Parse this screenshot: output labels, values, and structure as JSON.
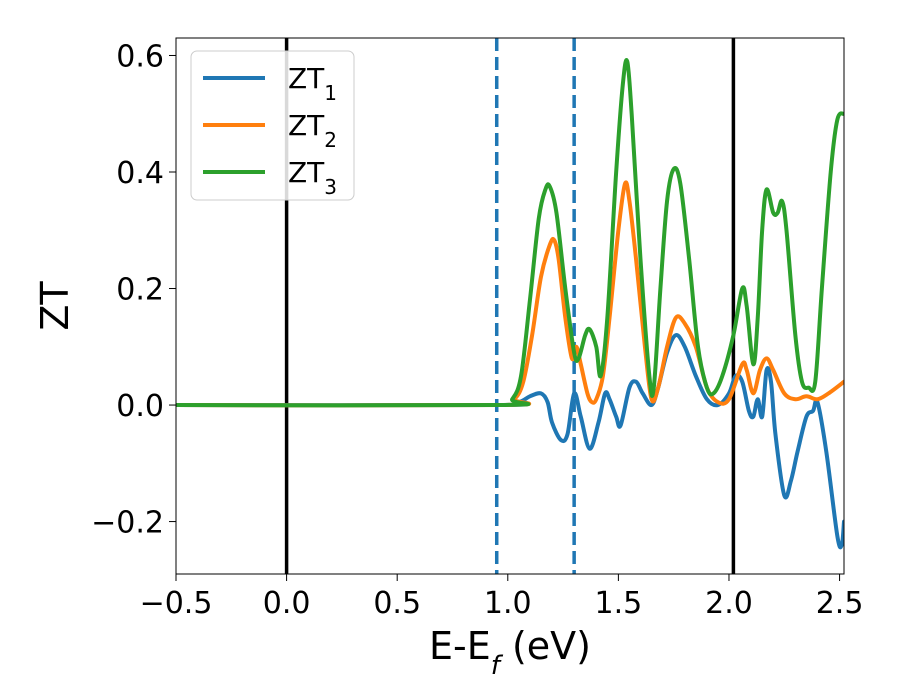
{
  "chart_data": {
    "type": "line",
    "title": "",
    "xlabel": {
      "main": "E-E",
      "sub": "f",
      "suffix": " (eV)"
    },
    "ylabel": "ZT",
    "xlim": [
      -0.5,
      2.52
    ],
    "ylim": [
      -0.29,
      0.63
    ],
    "xticks": [
      -0.5,
      0.0,
      0.5,
      1.0,
      1.5,
      2.0,
      2.5
    ],
    "xtick_labels": [
      "−0.5",
      "0.0",
      "0.5",
      "1.0",
      "1.5",
      "2.0",
      "2.5"
    ],
    "yticks": [
      -0.2,
      0.0,
      0.2,
      0.4,
      0.6
    ],
    "ytick_labels": [
      "−0.2",
      "0.0",
      "0.2",
      "0.4",
      "0.6"
    ],
    "grid": false,
    "legend_position": "top-left",
    "vlines": [
      {
        "x": 0.0,
        "style": "solid",
        "color": "#000000"
      },
      {
        "x": 2.02,
        "style": "solid",
        "color": "#000000"
      },
      {
        "x": 0.95,
        "style": "dashed",
        "color": "#1f77b4"
      },
      {
        "x": 1.3,
        "style": "dashed",
        "color": "#1f77b4"
      }
    ],
    "series": [
      {
        "name": "ZT",
        "sub": "1",
        "color": "#1f77b4",
        "points": [
          [
            -0.5,
            0
          ],
          [
            0.95,
            0
          ],
          [
            1.05,
            0.005
          ],
          [
            1.1,
            0.015
          ],
          [
            1.15,
            0.02
          ],
          [
            1.18,
            0.005
          ],
          [
            1.2,
            -0.03
          ],
          [
            1.24,
            -0.06
          ],
          [
            1.27,
            -0.05
          ],
          [
            1.3,
            0.02
          ],
          [
            1.33,
            -0.02
          ],
          [
            1.37,
            -0.075
          ],
          [
            1.41,
            -0.03
          ],
          [
            1.44,
            0.02
          ],
          [
            1.46,
            0.01
          ],
          [
            1.49,
            -0.02
          ],
          [
            1.51,
            -0.035
          ],
          [
            1.55,
            0.03
          ],
          [
            1.58,
            0.04
          ],
          [
            1.61,
            0.02
          ],
          [
            1.65,
            0.0
          ],
          [
            1.68,
            0.03
          ],
          [
            1.72,
            0.09
          ],
          [
            1.76,
            0.12
          ],
          [
            1.8,
            0.1
          ],
          [
            1.85,
            0.05
          ],
          [
            1.9,
            0.01
          ],
          [
            1.95,
            0.0
          ],
          [
            2.0,
            0.02
          ],
          [
            2.03,
            0.05
          ],
          [
            2.06,
            0.04
          ],
          [
            2.09,
            -0.01
          ],
          [
            2.11,
            -0.02
          ],
          [
            2.13,
            0.01
          ],
          [
            2.15,
            -0.02
          ],
          [
            2.17,
            0.06
          ],
          [
            2.19,
            0.04
          ],
          [
            2.21,
            -0.05
          ],
          [
            2.25,
            -0.155
          ],
          [
            2.28,
            -0.13
          ],
          [
            2.31,
            -0.08
          ],
          [
            2.35,
            -0.02
          ],
          [
            2.38,
            -0.01
          ],
          [
            2.4,
            0.005
          ],
          [
            2.44,
            -0.08
          ],
          [
            2.49,
            -0.225
          ],
          [
            2.51,
            -0.24
          ],
          [
            2.52,
            -0.2
          ]
        ]
      },
      {
        "name": "ZT",
        "sub": "2",
        "color": "#ff7f0e",
        "points": [
          [
            -0.5,
            0
          ],
          [
            0.97,
            0
          ],
          [
            1.03,
            0.01
          ],
          [
            1.07,
            0.04
          ],
          [
            1.11,
            0.12
          ],
          [
            1.15,
            0.22
          ],
          [
            1.19,
            0.275
          ],
          [
            1.21,
            0.283
          ],
          [
            1.23,
            0.25
          ],
          [
            1.26,
            0.15
          ],
          [
            1.29,
            0.08
          ],
          [
            1.31,
            0.1
          ],
          [
            1.33,
            0.07
          ],
          [
            1.36,
            0.02
          ],
          [
            1.38,
            0.005
          ],
          [
            1.4,
            0.01
          ],
          [
            1.43,
            0.05
          ],
          [
            1.46,
            0.15
          ],
          [
            1.5,
            0.3
          ],
          [
            1.53,
            0.38
          ],
          [
            1.55,
            0.35
          ],
          [
            1.58,
            0.25
          ],
          [
            1.62,
            0.1
          ],
          [
            1.65,
            0.01
          ],
          [
            1.68,
            0.03
          ],
          [
            1.72,
            0.1
          ],
          [
            1.76,
            0.15
          ],
          [
            1.8,
            0.14
          ],
          [
            1.85,
            0.1
          ],
          [
            1.9,
            0.03
          ],
          [
            1.95,
            0.005
          ],
          [
            2.0,
            0.01
          ],
          [
            2.06,
            0.07
          ],
          [
            2.08,
            0.06
          ],
          [
            2.11,
            0.02
          ],
          [
            2.14,
            0.06
          ],
          [
            2.17,
            0.08
          ],
          [
            2.2,
            0.06
          ],
          [
            2.25,
            0.02
          ],
          [
            2.3,
            0.01
          ],
          [
            2.35,
            0.015
          ],
          [
            2.4,
            0.01
          ],
          [
            2.45,
            0.02
          ],
          [
            2.52,
            0.04
          ]
        ]
      },
      {
        "name": "ZT",
        "sub": "3",
        "color": "#2ca02c",
        "points": [
          [
            -0.5,
            0
          ],
          [
            0.97,
            0
          ],
          [
            1.02,
            0.01
          ],
          [
            1.06,
            0.05
          ],
          [
            1.1,
            0.18
          ],
          [
            1.14,
            0.32
          ],
          [
            1.17,
            0.37
          ],
          [
            1.19,
            0.375
          ],
          [
            1.22,
            0.33
          ],
          [
            1.26,
            0.2
          ],
          [
            1.3,
            0.09
          ],
          [
            1.32,
            0.08
          ],
          [
            1.35,
            0.12
          ],
          [
            1.37,
            0.13
          ],
          [
            1.4,
            0.1
          ],
          [
            1.42,
            0.05
          ],
          [
            1.45,
            0.15
          ],
          [
            1.49,
            0.4
          ],
          [
            1.52,
            0.55
          ],
          [
            1.54,
            0.59
          ],
          [
            1.56,
            0.5
          ],
          [
            1.6,
            0.25
          ],
          [
            1.64,
            0.05
          ],
          [
            1.66,
            0.03
          ],
          [
            1.69,
            0.2
          ],
          [
            1.72,
            0.35
          ],
          [
            1.75,
            0.405
          ],
          [
            1.78,
            0.38
          ],
          [
            1.82,
            0.25
          ],
          [
            1.86,
            0.1
          ],
          [
            1.9,
            0.03
          ],
          [
            1.93,
            0.02
          ],
          [
            1.97,
            0.05
          ],
          [
            2.02,
            0.12
          ],
          [
            2.06,
            0.2
          ],
          [
            2.08,
            0.17
          ],
          [
            2.11,
            0.07
          ],
          [
            2.13,
            0.15
          ],
          [
            2.15,
            0.3
          ],
          [
            2.17,
            0.37
          ],
          [
            2.2,
            0.33
          ],
          [
            2.22,
            0.33
          ],
          [
            2.24,
            0.35
          ],
          [
            2.26,
            0.3
          ],
          [
            2.3,
            0.12
          ],
          [
            2.33,
            0.04
          ],
          [
            2.36,
            0.03
          ],
          [
            2.39,
            0.04
          ],
          [
            2.42,
            0.2
          ],
          [
            2.46,
            0.4
          ],
          [
            2.49,
            0.49
          ],
          [
            2.52,
            0.5
          ]
        ]
      }
    ]
  }
}
